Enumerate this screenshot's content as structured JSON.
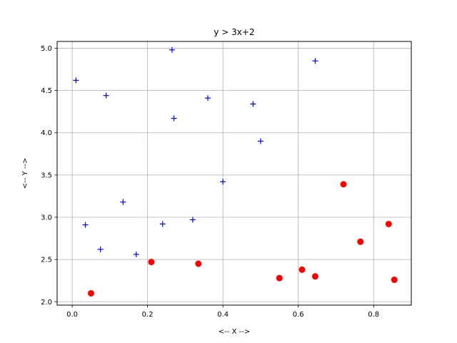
{
  "chart_data": {
    "type": "scatter",
    "title": "y > 3x+2",
    "xlabel": "<-- X -->",
    "ylabel": "<-- Y -->",
    "xlim": [
      -0.04,
      0.9
    ],
    "ylim": [
      1.96,
      5.08
    ],
    "xticks": [
      0.0,
      0.2,
      0.4,
      0.6,
      0.8
    ],
    "xtick_labels": [
      "0.0",
      "0.2",
      "0.4",
      "0.6",
      "0.8"
    ],
    "yticks": [
      2.0,
      2.5,
      3.0,
      3.5,
      4.0,
      4.5,
      5.0
    ],
    "ytick_labels": [
      "2.0",
      "2.5",
      "3.0",
      "3.5",
      "4.0",
      "4.5",
      "5.0"
    ],
    "grid": true,
    "series": [
      {
        "marker": "plus",
        "color": "#0000ff",
        "x": [
          0.01,
          0.09,
          0.265,
          0.645,
          0.36,
          0.48,
          0.27,
          0.5,
          0.4,
          0.135,
          0.035,
          0.24,
          0.32,
          0.075,
          0.17
        ],
        "y": [
          4.62,
          4.44,
          4.98,
          4.85,
          4.41,
          4.34,
          4.17,
          3.9,
          3.42,
          3.18,
          2.91,
          2.92,
          2.97,
          2.62,
          2.56
        ]
      },
      {
        "marker": "circle",
        "color": "#ff0000",
        "x": [
          0.72,
          0.765,
          0.84,
          0.21,
          0.335,
          0.61,
          0.645,
          0.55,
          0.855,
          0.05
        ],
        "y": [
          3.39,
          2.71,
          2.92,
          2.47,
          2.45,
          2.38,
          2.3,
          2.28,
          2.26,
          2.1
        ]
      }
    ]
  }
}
